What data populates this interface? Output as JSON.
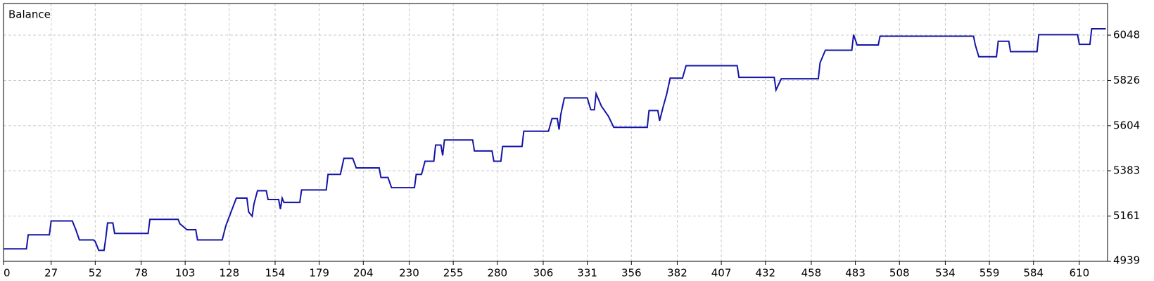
{
  "chart_data": {
    "type": "line",
    "title": "Balance",
    "x": [
      0,
      13,
      14,
      26,
      27,
      39,
      41,
      43,
      51,
      52,
      54,
      57,
      58,
      59,
      62,
      63,
      82,
      83,
      99,
      100,
      104,
      109,
      110,
      124,
      126,
      129,
      132,
      138,
      139,
      141,
      142,
      144,
      149,
      150,
      156,
      157,
      158,
      159,
      168,
      169,
      183,
      184,
      191,
      193,
      198,
      200,
      213,
      214,
      218,
      220,
      233,
      234,
      237,
      239,
      244,
      245,
      248,
      249,
      250,
      266,
      267,
      277,
      278,
      282,
      283,
      294,
      295,
      309,
      311,
      314,
      315,
      316,
      318,
      331,
      333,
      335,
      336,
      339,
      343,
      346,
      365,
      366,
      371,
      372,
      374,
      376,
      378,
      385,
      387,
      416,
      417,
      437,
      438,
      441,
      462,
      463,
      466,
      481,
      482,
      484,
      496,
      497,
      550,
      551,
      553,
      563,
      564,
      570,
      571,
      586,
      587,
      609,
      610,
      616,
      617,
      625
    ],
    "series": [
      {
        "name": "Balance",
        "color": "#1414a8",
        "values": [
          5000,
          5000,
          5069,
          5069,
          5137,
          5137,
          5094,
          5044,
          5044,
          5036,
          4993,
          4993,
          5054,
          5127,
          5127,
          5076,
          5076,
          5145,
          5145,
          5123,
          5094,
          5094,
          5044,
          5044,
          5112,
          5181,
          5249,
          5249,
          5181,
          5160,
          5220,
          5285,
          5285,
          5242,
          5242,
          5195,
          5249,
          5228,
          5228,
          5289,
          5289,
          5365,
          5365,
          5444,
          5444,
          5397,
          5397,
          5350,
          5350,
          5300,
          5300,
          5365,
          5365,
          5430,
          5430,
          5509,
          5509,
          5458,
          5534,
          5534,
          5480,
          5480,
          5430,
          5430,
          5502,
          5502,
          5577,
          5577,
          5639,
          5639,
          5585,
          5660,
          5740,
          5740,
          5682,
          5682,
          5761,
          5700,
          5650,
          5596,
          5596,
          5678,
          5678,
          5628,
          5696,
          5758,
          5837,
          5837,
          5898,
          5898,
          5841,
          5841,
          5779,
          5834,
          5834,
          5913,
          5974,
          5974,
          6050,
          6000,
          6000,
          6043,
          6043,
          6000,
          5942,
          5942,
          6018,
          6018,
          5967,
          5967,
          6050,
          6050,
          6003,
          6003,
          6079,
          6079
        ]
      }
    ],
    "xlim": [
      0,
      626
    ],
    "ylim": [
      4939,
      6203
    ],
    "xticks": [
      0,
      27,
      52,
      78,
      103,
      128,
      154,
      179,
      204,
      230,
      255,
      280,
      306,
      331,
      356,
      382,
      407,
      432,
      458,
      483,
      508,
      534,
      559,
      584,
      610
    ],
    "yticks": [
      4939,
      5161,
      5383,
      5604,
      5826,
      6048
    ],
    "grid": true
  }
}
